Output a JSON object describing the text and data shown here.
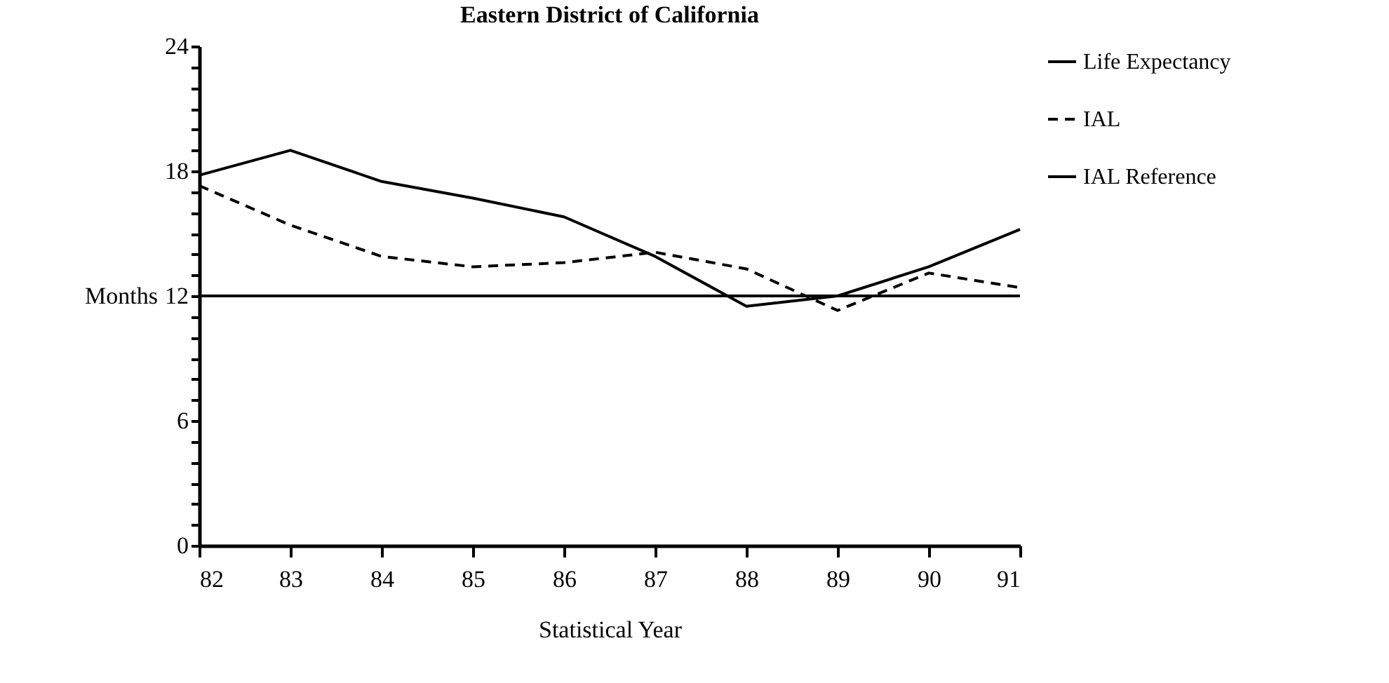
{
  "chart_data": {
    "type": "line",
    "title": "Eastern District of California",
    "xlabel": "Statistical Year",
    "ylabel": "Months",
    "x": [
      82,
      83,
      84,
      85,
      86,
      87,
      88,
      89,
      90,
      91
    ],
    "xlim": [
      82,
      91
    ],
    "xticks": [
      82,
      83,
      84,
      85,
      86,
      87,
      88,
      89,
      90,
      91
    ],
    "ylim": [
      0,
      24
    ],
    "yticks": [
      0,
      {
        "value": 1,
        "label": null
      },
      {
        "value": 2,
        "label": null
      },
      {
        "value": 3,
        "label": null
      },
      {
        "value": 4,
        "label": null
      },
      {
        "value": 5,
        "label": null
      },
      6,
      {
        "value": 7,
        "label": null
      },
      {
        "value": 8,
        "label": null
      },
      {
        "value": 9,
        "label": null
      },
      {
        "value": 10,
        "label": null
      },
      {
        "value": 11,
        "label": null
      },
      12,
      {
        "value": 13,
        "label": null
      },
      {
        "value": 14,
        "label": null
      },
      {
        "value": 15,
        "label": null
      },
      {
        "value": 16,
        "label": null
      },
      {
        "value": 17,
        "label": null
      },
      18,
      {
        "value": 19,
        "label": null
      },
      {
        "value": 20,
        "label": null
      },
      {
        "value": 21,
        "label": null
      },
      {
        "value": 22,
        "label": null
      },
      {
        "value": 23,
        "label": null
      },
      24
    ],
    "grid": false,
    "legend": "top right",
    "marker": "none",
    "series": [
      {
        "name": "Life Expectancy",
        "color": "#000000",
        "line_style": "solid",
        "values": [
          17.8,
          19.0,
          17.5,
          16.7,
          15.8,
          13.9,
          11.5,
          12.0,
          13.4,
          15.2
        ]
      },
      {
        "name": "IAL",
        "color": "#000000",
        "line_style": "dashed",
        "values": [
          17.3,
          15.4,
          13.9,
          13.4,
          13.6,
          14.1,
          13.3,
          11.3,
          13.1,
          12.4
        ]
      },
      {
        "name": "IAL Reference",
        "color": "#000000",
        "line_style": "solid",
        "values": [
          12,
          12,
          12,
          12,
          12,
          12,
          12,
          12,
          12,
          12
        ]
      }
    ]
  }
}
